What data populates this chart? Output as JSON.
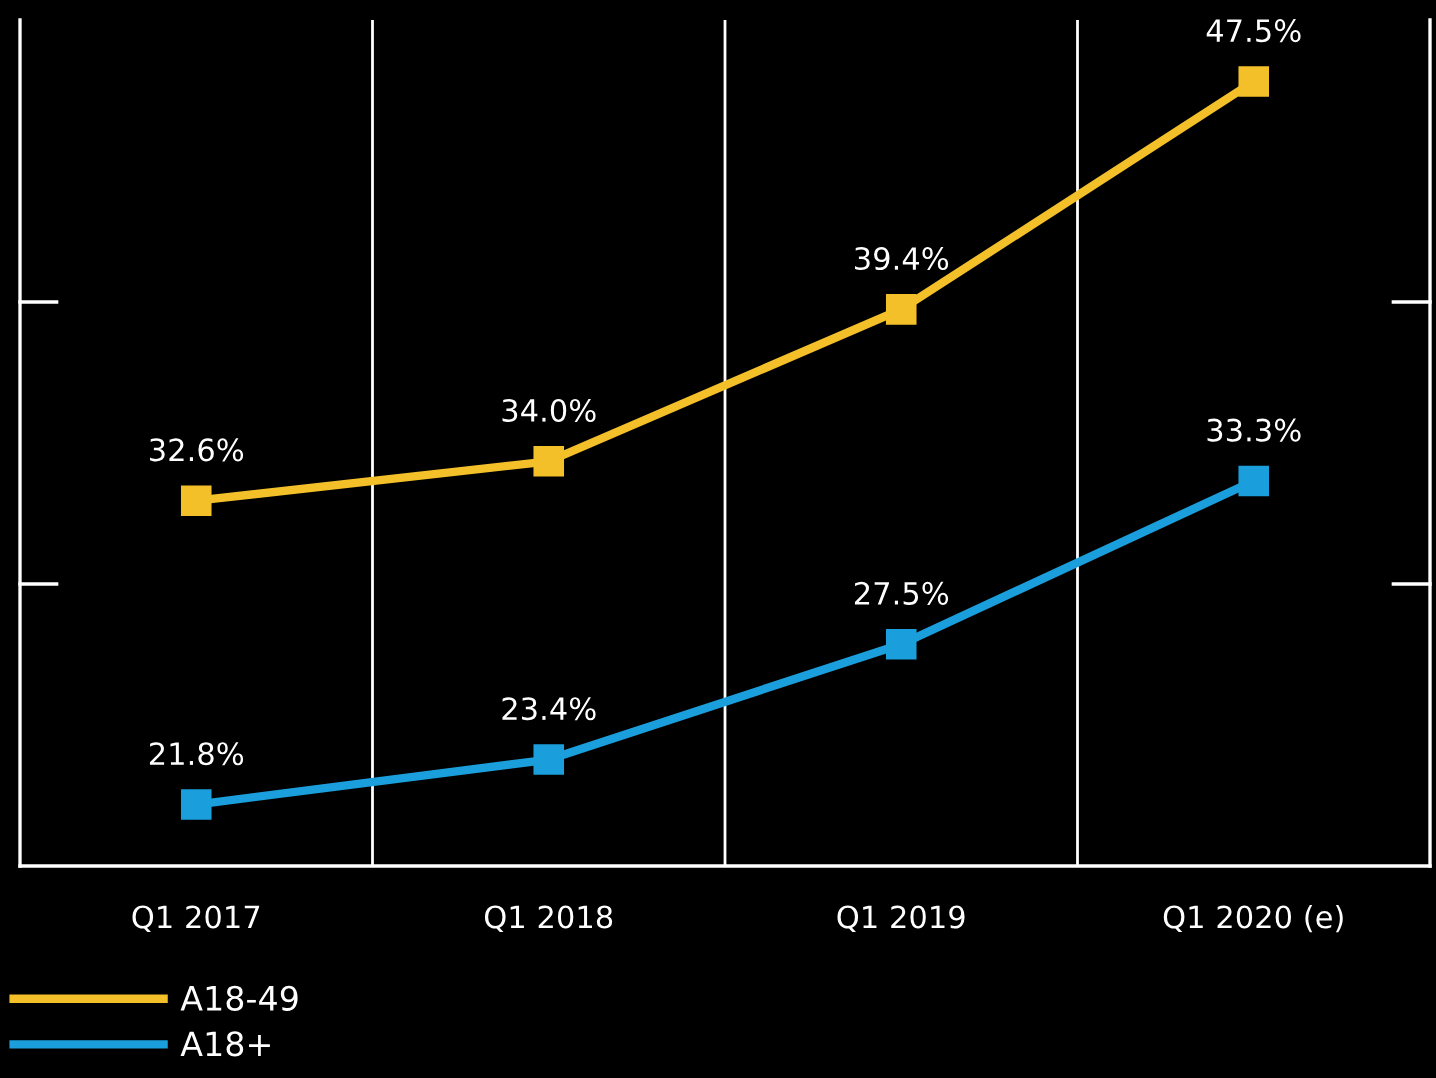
{
  "chart_data": {
    "type": "line",
    "categories": [
      "Q1 2017",
      "Q1 2018",
      "Q1 2019",
      "Q1 2020 (e)"
    ],
    "series": [
      {
        "name": "A18-49",
        "color": "#f4c02a",
        "values": [
          32.6,
          34.0,
          39.4,
          47.5
        ],
        "value_labels": [
          "32.6%",
          "34.0%",
          "39.4%",
          "47.5%"
        ]
      },
      {
        "name": "A18+",
        "color": "#1a9fdc",
        "values": [
          21.8,
          23.4,
          27.5,
          33.3
        ],
        "value_labels": [
          "21.8%",
          "23.4%",
          "27.5%",
          "33.3%"
        ]
      }
    ],
    "tick_labels": "x",
    "grid": "x",
    "legend": "bottom left",
    "marker": "square",
    "line_style": "solid"
  }
}
